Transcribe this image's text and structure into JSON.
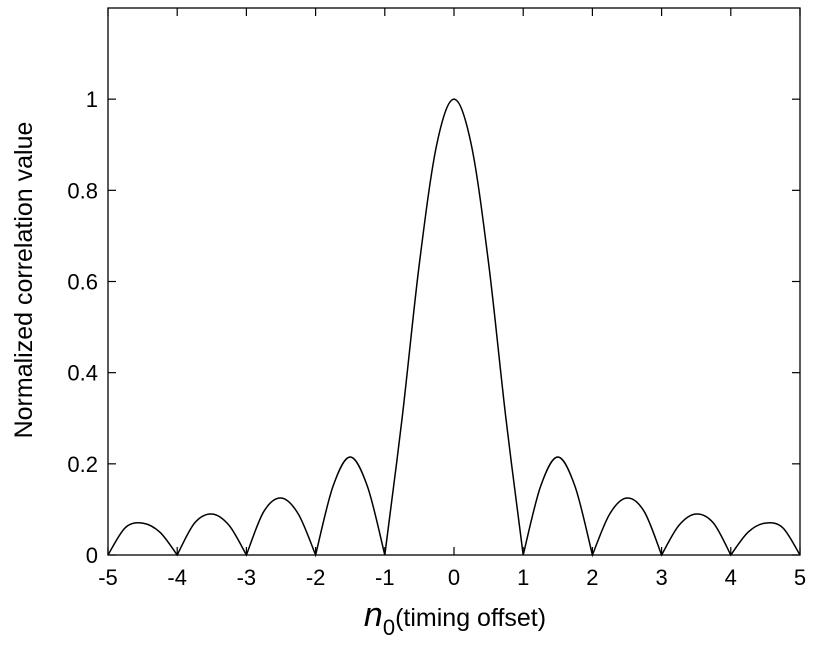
{
  "chart_data": {
    "type": "line",
    "title": "",
    "xlabel": {
      "symbol": "n",
      "subscript": "0",
      "text": "(timing offset)"
    },
    "ylabel": "Normalized correlation value",
    "xlim": [
      -5,
      5
    ],
    "ylim": [
      0,
      1.2
    ],
    "xticks": [
      "-5",
      "-4",
      "-3",
      "-2",
      "-1",
      "0",
      "1",
      "2",
      "3",
      "4",
      "5"
    ],
    "yticks": [
      {
        "value": 0,
        "label": "0"
      },
      {
        "value": 0.2,
        "label": "0.2"
      },
      {
        "value": 0.4,
        "label": "0.4"
      },
      {
        "value": 0.6,
        "label": "0.6"
      },
      {
        "value": 0.8,
        "label": "0.8"
      },
      {
        "value": 1,
        "label": "1"
      }
    ],
    "grid": false,
    "legend": "none",
    "color": "#000000",
    "series": [
      {
        "x": [
          -5,
          -4.75,
          -4.5,
          -4.25,
          -4,
          -3.75,
          -3.5,
          -3.25,
          -3,
          -2.75,
          -2.5,
          -2.25,
          -2,
          -1.75,
          -1.5,
          -1.25,
          -1,
          -0.75,
          -0.5,
          -0.25,
          0,
          0.25,
          0.5,
          0.75,
          1,
          1.25,
          1.5,
          1.75,
          2,
          2.25,
          2.5,
          2.75,
          3,
          3.25,
          3.5,
          3.75,
          4,
          4.25,
          4.5,
          4.75,
          5
        ],
        "y": [
          0,
          0.06,
          0.07,
          0.05,
          0,
          0.07,
          0.09,
          0.065,
          0,
          0.095,
          0.125,
          0.09,
          0,
          0.15,
          0.215,
          0.15,
          0,
          0.3,
          0.64,
          0.9,
          1,
          0.9,
          0.64,
          0.3,
          0,
          0.15,
          0.215,
          0.15,
          0,
          0.09,
          0.125,
          0.095,
          0,
          0.065,
          0.09,
          0.07,
          0,
          0.05,
          0.07,
          0.06,
          0
        ]
      }
    ]
  }
}
